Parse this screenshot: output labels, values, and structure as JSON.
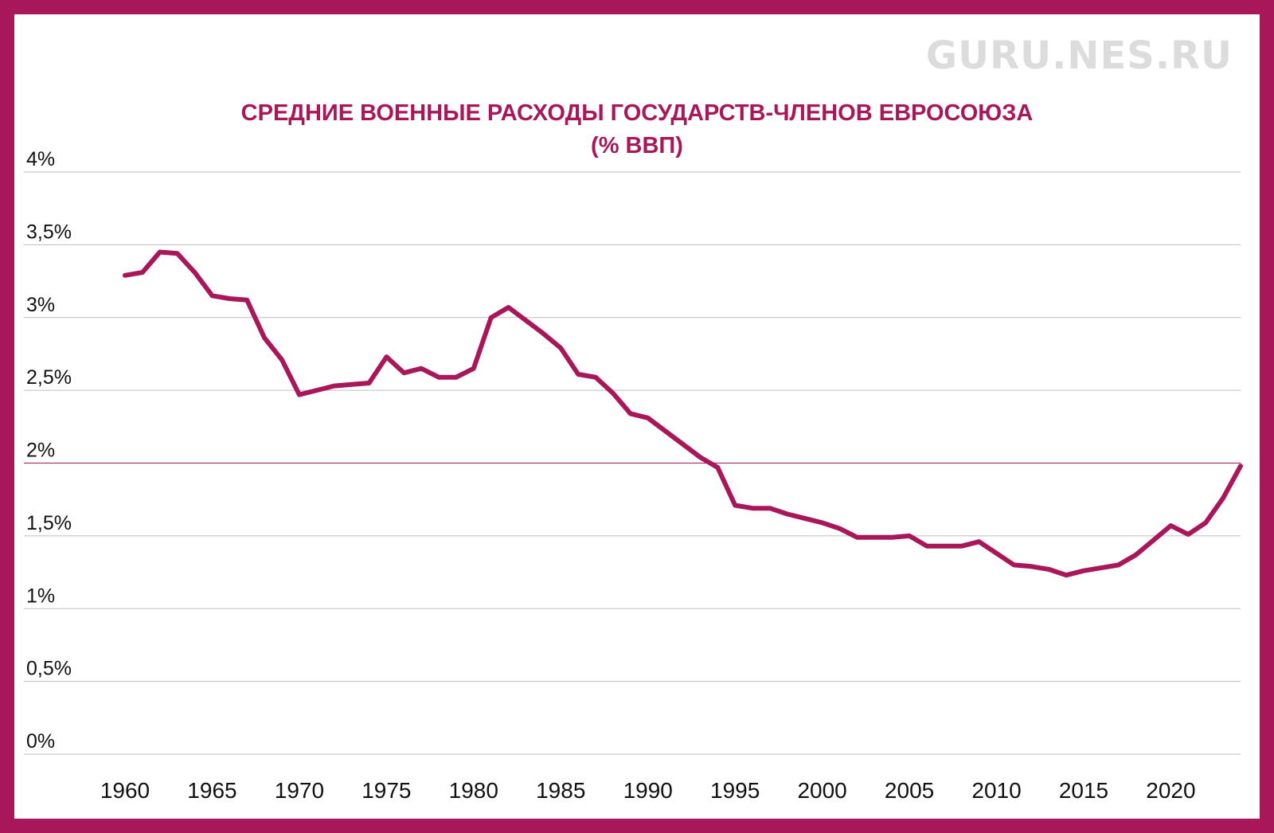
{
  "watermark": "GURU.NES.RU",
  "chart_data": {
    "type": "line",
    "title": "СРЕДНИЕ ВОЕННЫЕ РАСХОДЫ ГОСУДАРСТВ-ЧЛЕНОВ ЕВРОСОЮЗА",
    "subtitle": "(% ВВП)",
    "xlabel": "",
    "ylabel": "",
    "ylim": [
      0,
      4
    ],
    "xlim": [
      1960,
      2024
    ],
    "grid": true,
    "yticks": [
      {
        "value": 0,
        "label": "0%"
      },
      {
        "value": 0.5,
        "label": "0,5%"
      },
      {
        "value": 1,
        "label": "1%"
      },
      {
        "value": 1.5,
        "label": "1,5%"
      },
      {
        "value": 2,
        "label": "2%"
      },
      {
        "value": 2.5,
        "label": "2,5%"
      },
      {
        "value": 3,
        "label": "3%"
      },
      {
        "value": 3.5,
        "label": "3,5%"
      },
      {
        "value": 4,
        "label": "4%"
      }
    ],
    "xticks": [
      1960,
      1965,
      1970,
      1975,
      1980,
      1985,
      1990,
      1995,
      2000,
      2005,
      2010,
      2015,
      2020
    ],
    "highlight_line": {
      "value": 2,
      "color": "#a8175a"
    },
    "line_color": "#a8175a",
    "frame_color": "#a8175a",
    "series": [
      {
        "x": [
          1960,
          1961,
          1962,
          1963,
          1964,
          1965,
          1966,
          1967,
          1968,
          1969,
          1970,
          1971,
          1972,
          1973,
          1974,
          1975,
          1976,
          1977,
          1978,
          1979,
          1980,
          1981,
          1982,
          1983,
          1984,
          1985,
          1986,
          1987,
          1988,
          1989,
          1990,
          1991,
          1992,
          1993,
          1994,
          1995,
          1996,
          1997,
          1998,
          1999,
          2000,
          2001,
          2002,
          2003,
          2004,
          2005,
          2006,
          2007,
          2008,
          2009,
          2010,
          2011,
          2012,
          2013,
          2014,
          2015,
          2016,
          2017,
          2018,
          2019,
          2020,
          2021,
          2022,
          2023,
          2024
        ],
        "values": [
          3.29,
          3.31,
          3.45,
          3.44,
          3.31,
          3.15,
          3.13,
          3.12,
          2.86,
          2.71,
          2.47,
          2.5,
          2.53,
          2.54,
          2.55,
          2.73,
          2.62,
          2.65,
          2.59,
          2.59,
          2.65,
          3.0,
          3.07,
          2.98,
          2.89,
          2.79,
          2.61,
          2.59,
          2.48,
          2.34,
          2.31,
          2.22,
          2.13,
          2.04,
          1.97,
          1.71,
          1.69,
          1.69,
          1.65,
          1.62,
          1.59,
          1.55,
          1.49,
          1.49,
          1.49,
          1.5,
          1.43,
          1.43,
          1.43,
          1.46,
          1.38,
          1.3,
          1.29,
          1.27,
          1.23,
          1.26,
          1.28,
          1.3,
          1.37,
          1.47,
          1.57,
          1.51,
          1.59,
          1.76,
          1.98
        ]
      }
    ]
  }
}
